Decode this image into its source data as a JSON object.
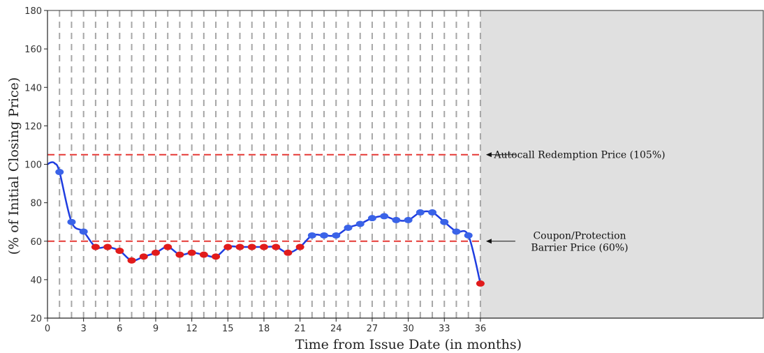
{
  "chart_data": {
    "type": "line",
    "xlabel": "Time from Issue Date (in months)",
    "ylabel": "(% of Initial Closing Price)",
    "xlim": [
      0,
      36
    ],
    "ylim": [
      20,
      180
    ],
    "x_ticks": [
      0,
      3,
      6,
      9,
      12,
      15,
      18,
      21,
      24,
      27,
      30,
      33,
      36
    ],
    "y_ticks": [
      20,
      40,
      60,
      80,
      100,
      120,
      140,
      160,
      180
    ],
    "observation_months": [
      1,
      2,
      3,
      4,
      5,
      6,
      7,
      8,
      9,
      10,
      11,
      12,
      13,
      14,
      15,
      16,
      17,
      18,
      19,
      20,
      21,
      22,
      23,
      24,
      25,
      26,
      27,
      28,
      29,
      30,
      31,
      32,
      33,
      34,
      35,
      36
    ],
    "shaded_region": {
      "from_x": 36,
      "color": "#e0e0e0"
    },
    "grid": "vertical dashed lines at each observation month",
    "series": [
      {
        "color": "#1f3de0",
        "curve_points": [
          {
            "x": 0,
            "y": 100
          },
          {
            "x": 0.3,
            "y": 101
          },
          {
            "x": 0.6,
            "y": 100.5
          },
          {
            "x": 1,
            "y": 96
          },
          {
            "x": 2,
            "y": 70
          },
          {
            "x": 3,
            "y": 65
          },
          {
            "x": 4,
            "y": 57
          },
          {
            "x": 5,
            "y": 57
          },
          {
            "x": 6,
            "y": 55
          },
          {
            "x": 7,
            "y": 50
          },
          {
            "x": 8,
            "y": 52
          },
          {
            "x": 9,
            "y": 54
          },
          {
            "x": 10,
            "y": 57
          },
          {
            "x": 11,
            "y": 53
          },
          {
            "x": 12,
            "y": 54
          },
          {
            "x": 13,
            "y": 53
          },
          {
            "x": 14,
            "y": 52
          },
          {
            "x": 15,
            "y": 57
          },
          {
            "x": 16,
            "y": 57
          },
          {
            "x": 17,
            "y": 57
          },
          {
            "x": 18,
            "y": 57
          },
          {
            "x": 19,
            "y": 57
          },
          {
            "x": 20,
            "y": 54
          },
          {
            "x": 21,
            "y": 57
          },
          {
            "x": 22,
            "y": 63
          },
          {
            "x": 23,
            "y": 63
          },
          {
            "x": 24,
            "y": 63
          },
          {
            "x": 25,
            "y": 67
          },
          {
            "x": 26,
            "y": 69
          },
          {
            "x": 27,
            "y": 72
          },
          {
            "x": 28,
            "y": 73
          },
          {
            "x": 29,
            "y": 71
          },
          {
            "x": 30,
            "y": 71
          },
          {
            "x": 31,
            "y": 75
          },
          {
            "x": 32,
            "y": 75
          },
          {
            "x": 33,
            "y": 70
          },
          {
            "x": 34,
            "y": 65
          },
          {
            "x": 35,
            "y": 63
          },
          {
            "x": 36,
            "y": 38
          }
        ]
      }
    ],
    "observations": [
      {
        "x": 1,
        "y": 96,
        "status": "above_barrier"
      },
      {
        "x": 2,
        "y": 70,
        "status": "above_barrier"
      },
      {
        "x": 3,
        "y": 65,
        "status": "above_barrier"
      },
      {
        "x": 4,
        "y": 57,
        "status": "below_barrier"
      },
      {
        "x": 5,
        "y": 57,
        "status": "below_barrier"
      },
      {
        "x": 6,
        "y": 55,
        "status": "below_barrier"
      },
      {
        "x": 7,
        "y": 50,
        "status": "below_barrier"
      },
      {
        "x": 8,
        "y": 52,
        "status": "below_barrier"
      },
      {
        "x": 9,
        "y": 54,
        "status": "below_barrier"
      },
      {
        "x": 10,
        "y": 57,
        "status": "below_barrier"
      },
      {
        "x": 11,
        "y": 53,
        "status": "below_barrier"
      },
      {
        "x": 12,
        "y": 54,
        "status": "below_barrier"
      },
      {
        "x": 13,
        "y": 53,
        "status": "below_barrier"
      },
      {
        "x": 14,
        "y": 52,
        "status": "below_barrier"
      },
      {
        "x": 15,
        "y": 57,
        "status": "below_barrier"
      },
      {
        "x": 16,
        "y": 57,
        "status": "below_barrier"
      },
      {
        "x": 17,
        "y": 57,
        "status": "below_barrier"
      },
      {
        "x": 18,
        "y": 57,
        "status": "below_barrier"
      },
      {
        "x": 19,
        "y": 57,
        "status": "below_barrier"
      },
      {
        "x": 20,
        "y": 54,
        "status": "below_barrier"
      },
      {
        "x": 21,
        "y": 57,
        "status": "below_barrier"
      },
      {
        "x": 22,
        "y": 63,
        "status": "above_barrier"
      },
      {
        "x": 23,
        "y": 63,
        "status": "above_barrier"
      },
      {
        "x": 24,
        "y": 63,
        "status": "above_barrier"
      },
      {
        "x": 25,
        "y": 67,
        "status": "above_barrier"
      },
      {
        "x": 26,
        "y": 69,
        "status": "above_barrier"
      },
      {
        "x": 27,
        "y": 72,
        "status": "above_barrier"
      },
      {
        "x": 28,
        "y": 73,
        "status": "above_barrier"
      },
      {
        "x": 29,
        "y": 71,
        "status": "above_barrier"
      },
      {
        "x": 30,
        "y": 71,
        "status": "above_barrier"
      },
      {
        "x": 31,
        "y": 75,
        "status": "above_barrier"
      },
      {
        "x": 32,
        "y": 75,
        "status": "above_barrier"
      },
      {
        "x": 33,
        "y": 70,
        "status": "above_barrier"
      },
      {
        "x": 34,
        "y": 65,
        "status": "above_barrier"
      },
      {
        "x": 35,
        "y": 63,
        "status": "above_barrier"
      },
      {
        "x": 36,
        "y": 38,
        "status": "below_barrier"
      }
    ],
    "marker_colors": {
      "above_barrier": "#3a63e8",
      "below_barrier": "#e11b1b"
    },
    "reference_lines": [
      {
        "y": 105,
        "color": "#e53935",
        "label_lines": [
          "Autocall Redemption Price (105%)"
        ]
      },
      {
        "y": 60,
        "color": "#e53935",
        "label_lines": [
          "Coupon/Protection",
          "Barrier Price (60%)"
        ]
      }
    ]
  }
}
